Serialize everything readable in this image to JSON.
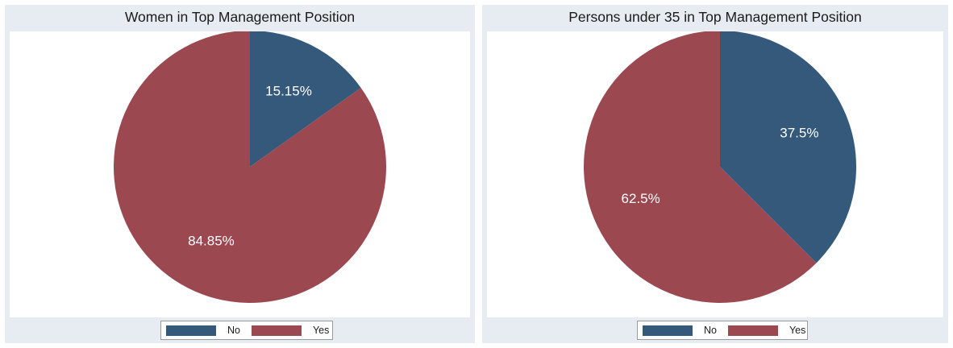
{
  "chart_data": [
    {
      "type": "pie",
      "title": "Women in Top Management Position",
      "categories": [
        "No",
        "Yes"
      ],
      "values": [
        15.15,
        84.85
      ],
      "labels": [
        "15.15%",
        "84.85%"
      ],
      "colors": [
        "#35597b",
        "#9b4851"
      ],
      "legend": {
        "position": "bottom",
        "entries": [
          "No",
          "Yes"
        ]
      }
    },
    {
      "type": "pie",
      "title": "Persons under 35 in Top Management Position",
      "categories": [
        "No",
        "Yes"
      ],
      "values": [
        37.5,
        62.5
      ],
      "labels": [
        "37.5%",
        "62.5%"
      ],
      "colors": [
        "#35597b",
        "#9b4851"
      ],
      "legend": {
        "position": "bottom",
        "entries": [
          "No",
          "Yes"
        ]
      }
    }
  ]
}
